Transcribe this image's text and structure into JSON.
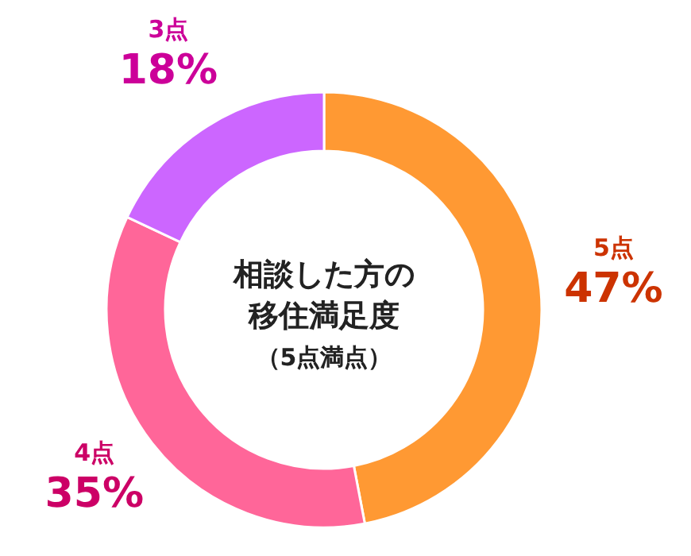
{
  "chart_data": {
    "type": "donut",
    "title": "相談した方の移住満足度",
    "subtitle": "（5点満点）",
    "categories": [
      "5点",
      "4点",
      "3点"
    ],
    "values": [
      47,
      35,
      18
    ],
    "colors": [
      "#ff9933",
      "#ff6699",
      "#cc66ff"
    ],
    "value_labels": [
      "47%",
      "35%",
      "18%"
    ]
  }
}
